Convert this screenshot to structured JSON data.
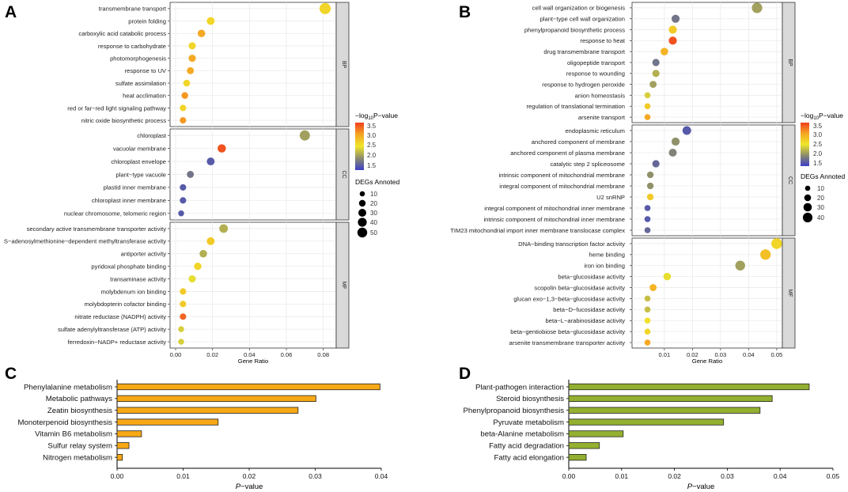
{
  "panel_labels": {
    "A": "A",
    "B": "B",
    "C": "C",
    "D": "D"
  },
  "colors": {
    "gradient": [
      "#3b3fc8",
      "#8c8c6c",
      "#f0e62a",
      "#f5a623",
      "#f0401e"
    ],
    "bar_fill": "#f7a815",
    "bar_fill_d": "#93b030",
    "panel_strip": "#d9d9d9",
    "grid": "#ebebeb"
  },
  "legends": {
    "a": {
      "color_title_prefix": "−log",
      "color_title_sub": "10",
      "color_title_suffix": "P−value",
      "color_ticks": [
        "3.5",
        "3.0",
        "2.5",
        "2.0",
        "1.5"
      ],
      "size_title": "DEGs Annoted",
      "size_labels": [
        "10",
        "20",
        "30",
        "40",
        "50"
      ]
    },
    "b": {
      "color_title_prefix": "−log",
      "color_title_sub": "10",
      "color_title_suffix": "P−value",
      "color_ticks": [
        "3.5",
        "3.0",
        "2.5",
        "2.0",
        "1.5"
      ],
      "size_title": "DEGs Annoted",
      "size_labels": [
        "10",
        "20",
        "30",
        "40"
      ]
    }
  },
  "chart_data": [
    {
      "id": "a",
      "type": "scatter",
      "title": "",
      "xlabel": "Gene Ratio",
      "ylabel": "",
      "xlim": [
        -0.003,
        0.087
      ],
      "xticks": [
        "0.00",
        "0.02",
        "0.04",
        "0.06",
        "0.08"
      ],
      "xtick_values": [
        0,
        0.02,
        0.04,
        0.06,
        0.08
      ],
      "color_range": [
        1.3,
        3.6
      ],
      "size_range": [
        5,
        55
      ],
      "facets": [
        {
          "strip": "BP",
          "points": [
            {
              "term": "transmembrane transport",
              "x": 0.081,
              "size": 52,
              "color": 2.6
            },
            {
              "term": "protein folding",
              "x": 0.019,
              "size": 18,
              "color": 2.6
            },
            {
              "term": "carboxylic acid catabolic process",
              "x": 0.014,
              "size": 16,
              "color": 3.0
            },
            {
              "term": "response to carbohydrate",
              "x": 0.009,
              "size": 14,
              "color": 2.6
            },
            {
              "term": "photomorphogenesis",
              "x": 0.009,
              "size": 14,
              "color": 3.0
            },
            {
              "term": "response to UV",
              "x": 0.008,
              "size": 13,
              "color": 3.0
            },
            {
              "term": "sulfate assimilation",
              "x": 0.006,
              "size": 12,
              "color": 2.6
            },
            {
              "term": "heat acclimation",
              "x": 0.005,
              "size": 11,
              "color": 3.1
            },
            {
              "term": "red or far−red light signaling pathway",
              "x": 0.004,
              "size": 10,
              "color": 2.6
            },
            {
              "term": "nitric oxide biosynthetic process",
              "x": 0.004,
              "size": 10,
              "color": 3.1
            }
          ]
        },
        {
          "strip": "CC",
          "points": [
            {
              "term": "chloroplast",
              "x": 0.07,
              "size": 40,
              "color": 2.0
            },
            {
              "term": "vacuolar membrane",
              "x": 0.025,
              "size": 22,
              "color": 3.5
            },
            {
              "term": "chloroplast envelope",
              "x": 0.019,
              "size": 18,
              "color": 1.5
            },
            {
              "term": "plant−type vacuole",
              "x": 0.008,
              "size": 13,
              "color": 1.7
            },
            {
              "term": "plastid inner membrane",
              "x": 0.004,
              "size": 10,
              "color": 1.5
            },
            {
              "term": "chloroplast inner membrane",
              "x": 0.004,
              "size": 10,
              "color": 1.5
            },
            {
              "term": "nuclear chromosome, telomeric region",
              "x": 0.003,
              "size": 8,
              "color": 1.5
            }
          ]
        },
        {
          "strip": "MF",
          "points": [
            {
              "term": "secondary active transmembrane transporter activity",
              "x": 0.026,
              "size": 24,
              "color": 2.1
            },
            {
              "term": "S−adenosylmethionine−dependent methyltransferase activity",
              "x": 0.019,
              "size": 18,
              "color": 2.7
            },
            {
              "term": "antiporter activity",
              "x": 0.015,
              "size": 16,
              "color": 2.1
            },
            {
              "term": "pyridoxal phosphate binding",
              "x": 0.012,
              "size": 15,
              "color": 2.6
            },
            {
              "term": "transaminase activity",
              "x": 0.009,
              "size": 14,
              "color": 2.4
            },
            {
              "term": "molybdenum ion binding",
              "x": 0.004,
              "size": 10,
              "color": 2.7
            },
            {
              "term": "molybdopterin cofactor binding",
              "x": 0.004,
              "size": 10,
              "color": 2.7
            },
            {
              "term": "nitrate reductase (NADPH) activity",
              "x": 0.004,
              "size": 10,
              "color": 3.4
            },
            {
              "term": "sulfate adenylyltransferase (ATP) activity",
              "x": 0.003,
              "size": 8,
              "color": 2.3
            },
            {
              "term": "ferredoxin−NADP+ reductase activity",
              "x": 0.003,
              "size": 8,
              "color": 2.3
            }
          ]
        }
      ]
    },
    {
      "id": "b",
      "type": "scatter",
      "title": "",
      "xlabel": "Gene Ratio",
      "ylabel": "",
      "xlim": [
        -0.0015,
        0.052
      ],
      "xticks": [
        "0.01",
        "0.02",
        "0.03",
        "0.04",
        "0.05"
      ],
      "xtick_values": [
        0.01,
        0.02,
        0.03,
        0.04,
        0.05
      ],
      "color_range": [
        1.3,
        3.6
      ],
      "size_range": [
        5,
        45
      ],
      "facets": [
        {
          "strip": "BP",
          "points": [
            {
              "term": "cell wall organization or biogenesis",
              "x": 0.043,
              "size": 38,
              "color": 2.0
            },
            {
              "term": "plant−type cell wall organization",
              "x": 0.014,
              "size": 18,
              "color": 1.7
            },
            {
              "term": "phenylpropanoid biosynthetic process",
              "x": 0.013,
              "size": 18,
              "color": 2.7
            },
            {
              "term": "response to heat",
              "x": 0.013,
              "size": 18,
              "color": 3.5
            },
            {
              "term": "drug transmembrane transport",
              "x": 0.01,
              "size": 15,
              "color": 2.9
            },
            {
              "term": "oligopeptide transport",
              "x": 0.007,
              "size": 13,
              "color": 1.7
            },
            {
              "term": "response to wounding",
              "x": 0.007,
              "size": 13,
              "color": 2.1
            },
            {
              "term": "response to hydrogen peroxide",
              "x": 0.006,
              "size": 12,
              "color": 2.0
            },
            {
              "term": "anion homeostasis",
              "x": 0.004,
              "size": 8,
              "color": 2.3
            },
            {
              "term": "regulation of translational termination",
              "x": 0.004,
              "size": 8,
              "color": 2.7
            },
            {
              "term": "arsenite transport",
              "x": 0.004,
              "size": 8,
              "color": 3.0
            }
          ]
        },
        {
          "strip": "CC",
          "points": [
            {
              "term": "endoplasmic reticulum",
              "x": 0.018,
              "size": 22,
              "color": 1.5
            },
            {
              "term": "anchored component of membrane",
              "x": 0.014,
              "size": 18,
              "color": 1.9
            },
            {
              "term": "anchored component of plasma membrane",
              "x": 0.013,
              "size": 17,
              "color": 1.8
            },
            {
              "term": "catalytic step 2 spliceosome",
              "x": 0.007,
              "size": 13,
              "color": 1.6
            },
            {
              "term": "intrinsic component of mitochondrial membrane",
              "x": 0.005,
              "size": 10,
              "color": 1.9
            },
            {
              "term": "integral component of mitochondrial membrane",
              "x": 0.005,
              "size": 10,
              "color": 1.9
            },
            {
              "term": "U2 snRNP",
              "x": 0.005,
              "size": 10,
              "color": 2.7
            },
            {
              "term": "integral component of mitochondrial inner membrane",
              "x": 0.004,
              "size": 8,
              "color": 1.5
            },
            {
              "term": "intrinsic component of mitochondrial inner membrane",
              "x": 0.004,
              "size": 8,
              "color": 1.5
            },
            {
              "term": "TIM23 mitochondrial import inner membrane translocase complex",
              "x": 0.004,
              "size": 8,
              "color": 1.6
            }
          ]
        },
        {
          "strip": "MF",
          "points": [
            {
              "term": "DNA−binding transcription factor activity",
              "x": 0.05,
              "size": 42,
              "color": 2.6
            },
            {
              "term": "heme binding",
              "x": 0.046,
              "size": 38,
              "color": 2.8
            },
            {
              "term": "iron ion binding",
              "x": 0.037,
              "size": 32,
              "color": 2.0
            },
            {
              "term": "beta−glucosidase activity",
              "x": 0.011,
              "size": 15,
              "color": 2.4
            },
            {
              "term": "scopolin beta−glucosidase activity",
              "x": 0.006,
              "size": 12,
              "color": 2.9
            },
            {
              "term": "glucan exo−1,3−beta−glucosidase activity",
              "x": 0.004,
              "size": 8,
              "color": 2.2
            },
            {
              "term": "beta−D−fucosidase activity",
              "x": 0.004,
              "size": 8,
              "color": 2.2
            },
            {
              "term": "beta−L−arabinosidase activity",
              "x": 0.004,
              "size": 8,
              "color": 2.5
            },
            {
              "term": "beta−gentiobiose beta−glucosidase activity",
              "x": 0.004,
              "size": 8,
              "color": 2.6
            },
            {
              "term": "arsenite transmembrane transporter activity",
              "x": 0.004,
              "size": 8,
              "color": 3.0
            }
          ]
        }
      ]
    },
    {
      "id": "c",
      "type": "bar",
      "orientation": "horizontal",
      "title": "",
      "categories": [
        "Phenylalanine metabolism",
        "Metabolic pathways",
        "Zeatin biosynthesis",
        "Monoterpenoid biosynthesis",
        "Vitamin B6 metabolism",
        "Sulfur relay system",
        "Nitrogen metabolism"
      ],
      "values": [
        0.0398,
        0.0301,
        0.0274,
        0.0153,
        0.0037,
        0.0018,
        0.0008
      ],
      "xlabel_italic": "P",
      "xlabel_rest": "−value",
      "xlim": [
        0,
        0.04
      ],
      "xticks": [
        "0.00",
        "0.01",
        "0.02",
        "0.03",
        "0.04"
      ],
      "xtick_values": [
        0,
        0.01,
        0.02,
        0.03,
        0.04
      ]
    },
    {
      "id": "d",
      "type": "bar",
      "orientation": "horizontal",
      "title": "",
      "categories": [
        "Plant-pathogen interaction",
        "Steroid biosynthesis",
        "Phenylpropanoid biosynthesis",
        "Pyruvate metabolism",
        "beta-Alanine metabolism",
        "Fatty acid degradation",
        "Fatty acid elongation"
      ],
      "values": [
        0.0455,
        0.0385,
        0.0362,
        0.0293,
        0.0103,
        0.0058,
        0.0033
      ],
      "xlabel_italic": "P",
      "xlabel_rest": "−value",
      "xlim": [
        0,
        0.05
      ],
      "xticks": [
        "0.00",
        "0.01",
        "0.02",
        "0.03",
        "0.04",
        "0.05"
      ],
      "xtick_values": [
        0,
        0.01,
        0.02,
        0.03,
        0.04,
        0.05
      ]
    }
  ]
}
